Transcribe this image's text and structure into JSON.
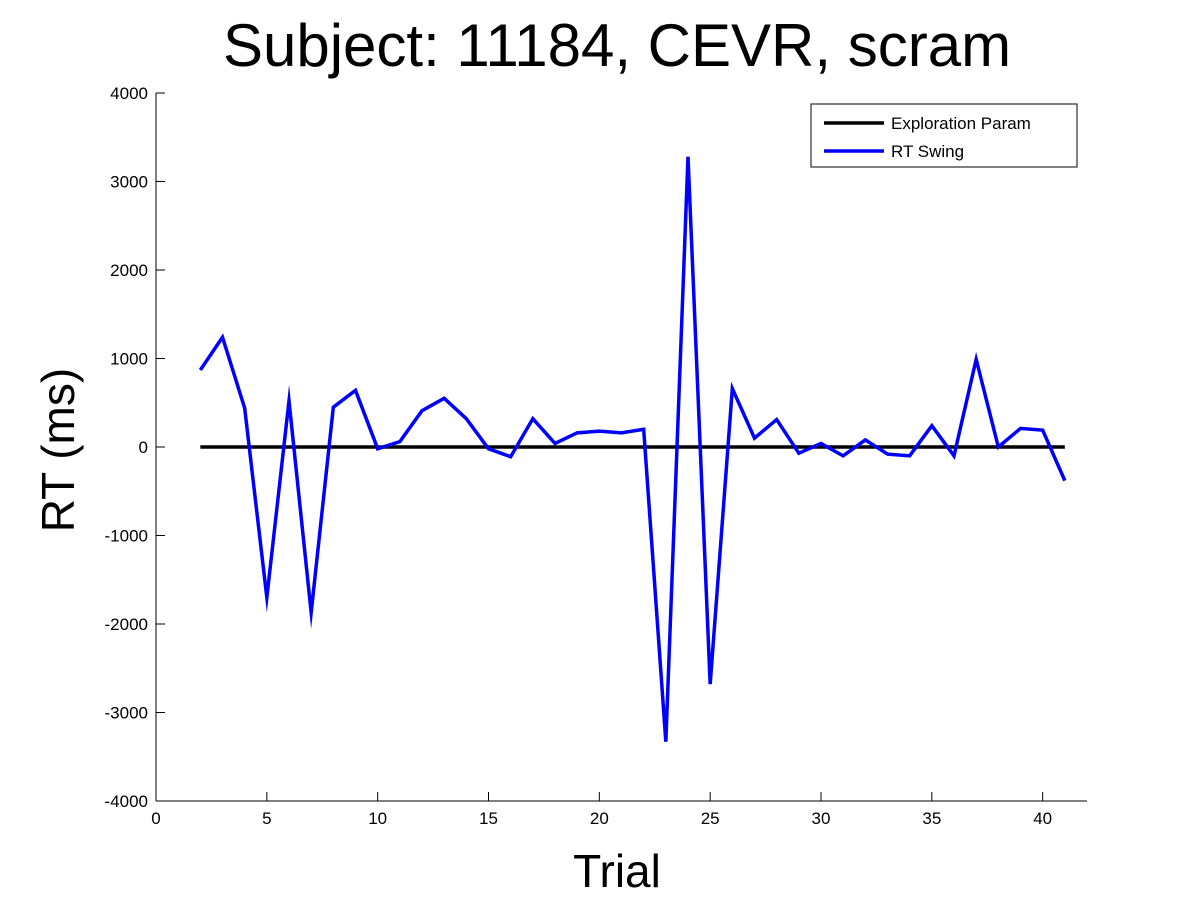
{
  "chart_data": {
    "type": "line",
    "title": "Subject: 11184, CEVR, scram",
    "xlabel": "Trial",
    "ylabel": "RT (ms)",
    "xlim": [
      0,
      42
    ],
    "ylim": [
      -4000,
      4000
    ],
    "xticks": [
      0,
      5,
      10,
      15,
      20,
      25,
      30,
      35,
      40
    ],
    "yticks": [
      -4000,
      -3000,
      -2000,
      -1000,
      0,
      1000,
      2000,
      3000,
      4000
    ],
    "grid": false,
    "legend_position": "top-right",
    "series": [
      {
        "name": "Exploration Param",
        "color": "#000000",
        "x": [
          2,
          41
        ],
        "y": [
          0,
          0
        ]
      },
      {
        "name": "RT Swing",
        "color": "#0000ff",
        "x": [
          2,
          3,
          4,
          5,
          6,
          7,
          8,
          9,
          10,
          11,
          12,
          13,
          14,
          15,
          16,
          17,
          18,
          19,
          20,
          21,
          22,
          23,
          24,
          25,
          26,
          27,
          28,
          29,
          30,
          31,
          32,
          33,
          34,
          35,
          36,
          37,
          38,
          39,
          40,
          41
        ],
        "y": [
          870,
          1240,
          440,
          -1700,
          520,
          -1870,
          450,
          640,
          -20,
          60,
          410,
          550,
          320,
          -20,
          -110,
          320,
          40,
          160,
          180,
          160,
          200,
          -3330,
          3280,
          -2680,
          660,
          100,
          310,
          -70,
          40,
          -100,
          80,
          -80,
          -100,
          240,
          -100,
          990,
          0,
          210,
          190,
          -380
        ]
      }
    ]
  }
}
